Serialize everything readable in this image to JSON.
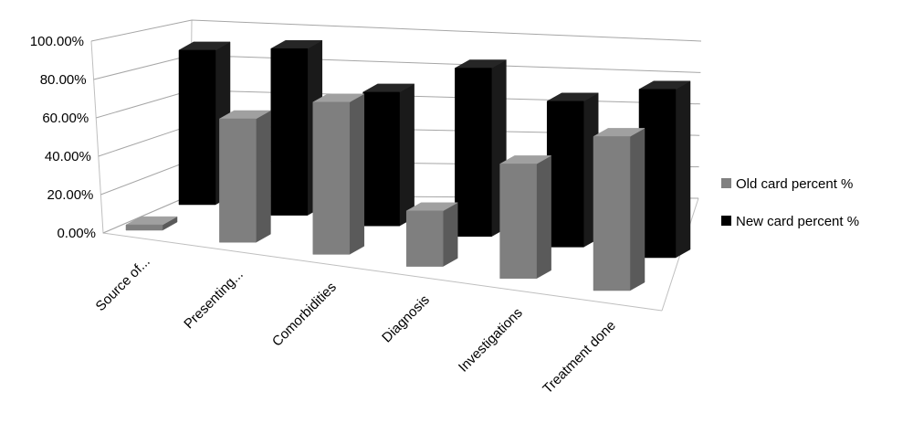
{
  "chart_data": {
    "type": "bar",
    "title": "",
    "xlabel": "",
    "ylabel": "",
    "ylim": [
      0,
      100
    ],
    "y_ticks": [
      "0.00%",
      "20.00%",
      "40.00%",
      "60.00%",
      "80.00%",
      "100.00%"
    ],
    "grid": true,
    "legend_position": "right",
    "categories": [
      "Source of...",
      "Presenting...",
      "Comorbidities",
      "Diagnosis",
      "Investigations",
      "Treatment done"
    ],
    "series": [
      {
        "name": "Old card percent %",
        "color": "#808080",
        "values": [
          3,
          69,
          85,
          31,
          64,
          86
        ]
      },
      {
        "name": "New card  percent %",
        "color": "#000000",
        "values": [
          89,
          96,
          77,
          97,
          84,
          97
        ]
      }
    ]
  }
}
